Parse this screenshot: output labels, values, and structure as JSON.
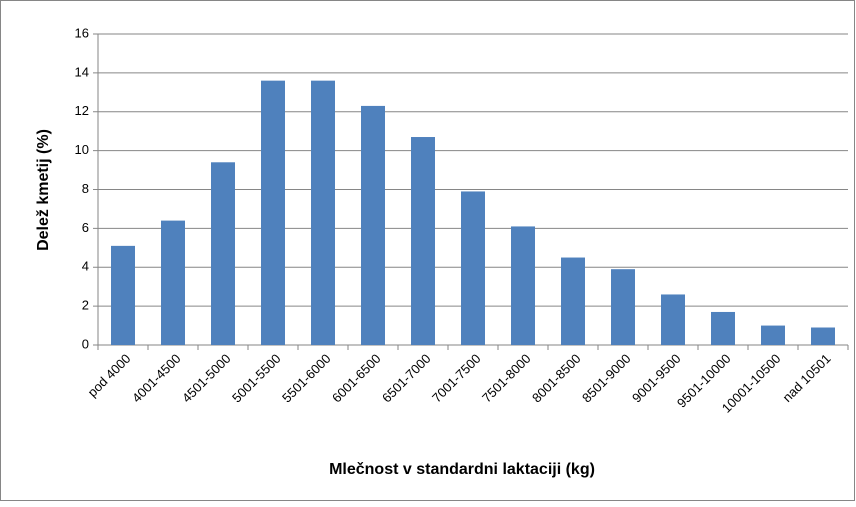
{
  "chart_data": {
    "type": "bar",
    "categories": [
      "pod 4000",
      "4001-4500",
      "4501-5000",
      "5001-5500",
      "5501-6000",
      "6001-6500",
      "6501-7000",
      "7001-7500",
      "7501-8000",
      "8001-8500",
      "8501-9000",
      "9001-9500",
      "9501-10000",
      "10001-10500",
      "nad 10501"
    ],
    "values": [
      5.1,
      6.4,
      9.4,
      13.6,
      13.6,
      12.3,
      10.7,
      7.9,
      6.1,
      4.5,
      3.9,
      2.6,
      1.7,
      1.0,
      0.9
    ],
    "color": "#4f81bd",
    "x_label": "Mlečnost v standardni laktaciji (kg)",
    "y_label": "Delež kmetij (%)",
    "ylim": [
      0,
      16
    ],
    "yticks": [
      0,
      2,
      4,
      6,
      8,
      10,
      12,
      14,
      16
    ],
    "grid": true
  }
}
